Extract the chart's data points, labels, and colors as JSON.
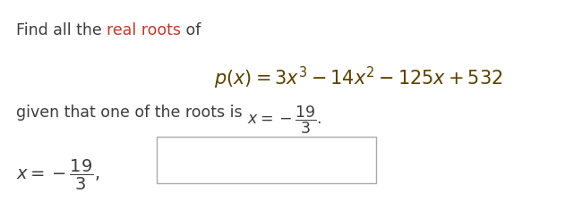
{
  "bg_color": "#ffffff",
  "dark_color": "#3d3d3d",
  "red_color": "#c0392b",
  "math_color": "#5a4000",
  "line1_normal": "Find all the ",
  "line1_red": "real roots",
  "line1_end": " of",
  "formula": "$p(x) = 3x^3 - 14x^2 - 125x + 532$",
  "given_prefix": "given that one of the roots is ",
  "given_math": "$x = -\\dfrac{19}{3}$",
  "answer_math": "$x = -\\dfrac{19}{3}$",
  "fontsize_text": 12.5,
  "fontsize_formula": 15,
  "fontsize_answer": 14
}
